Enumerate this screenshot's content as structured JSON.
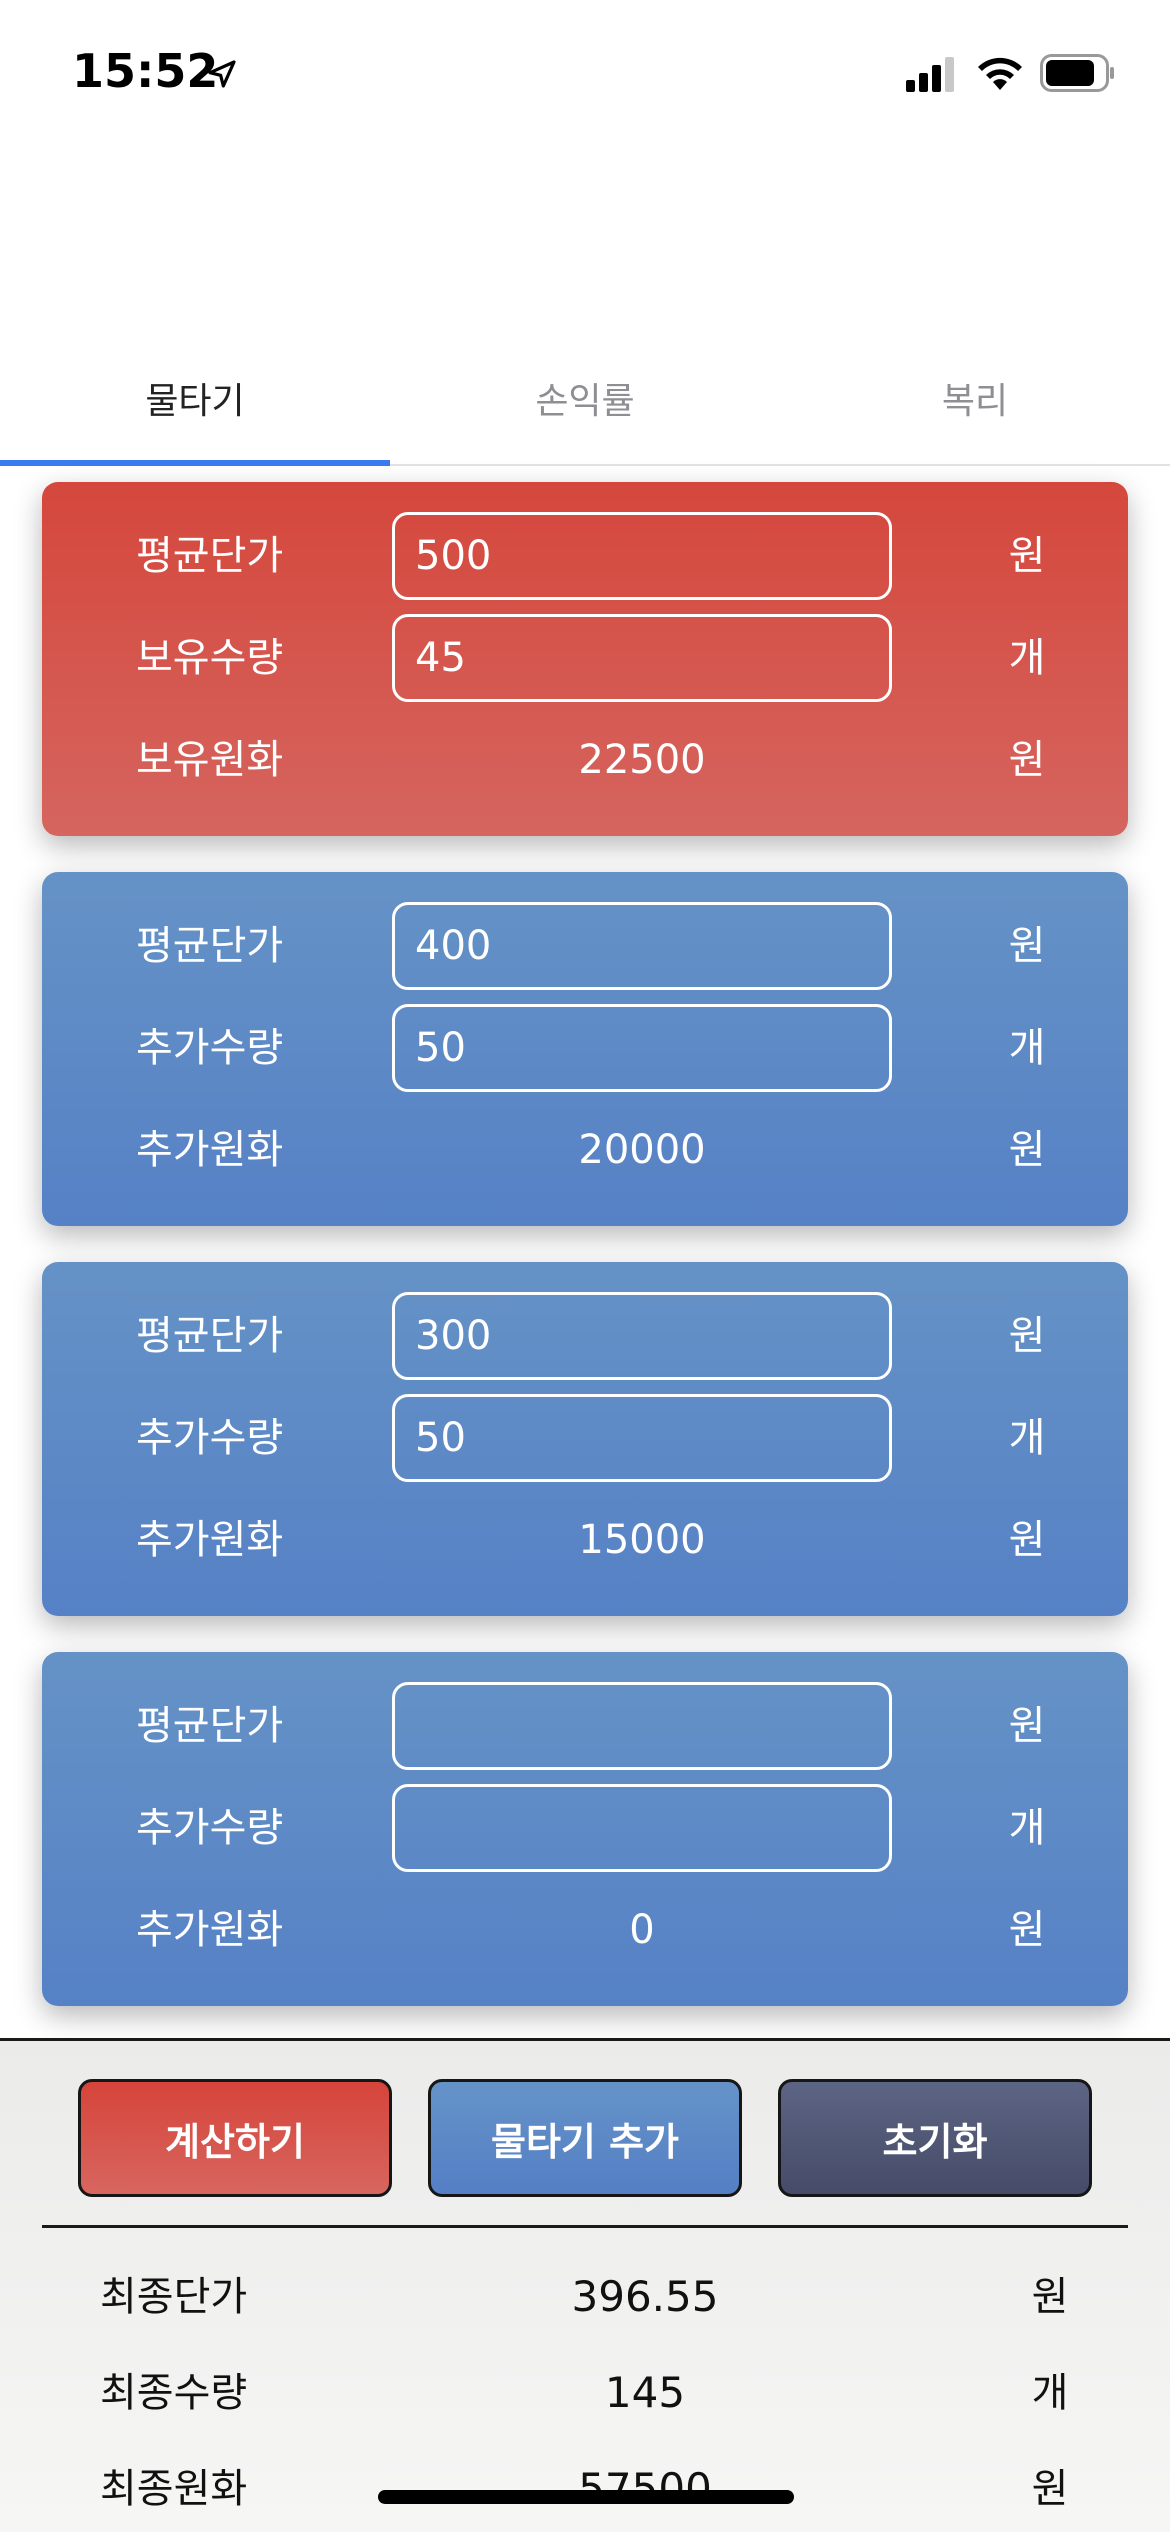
{
  "status_bar": {
    "time": "15:52",
    "icons": [
      "location-arrow-icon",
      "cellular-signal-icon",
      "wifi-icon",
      "battery-icon"
    ]
  },
  "tabs": [
    {
      "label": "물타기",
      "active": true
    },
    {
      "label": "손익률",
      "active": false
    },
    {
      "label": "복리",
      "active": false
    }
  ],
  "colors": {
    "accent_tab": "#3a7bf0",
    "card_red": "#d5473c",
    "card_blue": "#5f8bc7",
    "btn_reset": "#4f5675"
  },
  "cards": [
    {
      "style": "red",
      "rows": [
        {
          "label": "평균단가",
          "value": "500",
          "unit": "원"
        },
        {
          "label": "보유수량",
          "value": "45",
          "unit": "개"
        },
        {
          "label": "보유원화",
          "value": "22500",
          "unit": "원"
        }
      ]
    },
    {
      "style": "blue",
      "rows": [
        {
          "label": "평균단가",
          "value": "400",
          "unit": "원"
        },
        {
          "label": "추가수량",
          "value": "50",
          "unit": "개"
        },
        {
          "label": "추가원화",
          "value": "20000",
          "unit": "원"
        }
      ]
    },
    {
      "style": "blue",
      "rows": [
        {
          "label": "평균단가",
          "value": "300",
          "unit": "원"
        },
        {
          "label": "추가수량",
          "value": "50",
          "unit": "개"
        },
        {
          "label": "추가원화",
          "value": "15000",
          "unit": "원"
        }
      ]
    },
    {
      "style": "blue",
      "rows": [
        {
          "label": "평균단가",
          "value": "",
          "unit": "원"
        },
        {
          "label": "추가수량",
          "value": "",
          "unit": "개"
        },
        {
          "label": "추가원화",
          "value": "0",
          "unit": "원"
        }
      ]
    }
  ],
  "buttons": {
    "calculate": "계산하기",
    "add_averaging": "물타기 추가",
    "reset": "초기화"
  },
  "results": [
    {
      "label": "최종단가",
      "value": "396.55",
      "unit": "원"
    },
    {
      "label": "최종수량",
      "value": "145",
      "unit": "개"
    },
    {
      "label": "최종원화",
      "value": "57500",
      "unit": "원"
    }
  ]
}
